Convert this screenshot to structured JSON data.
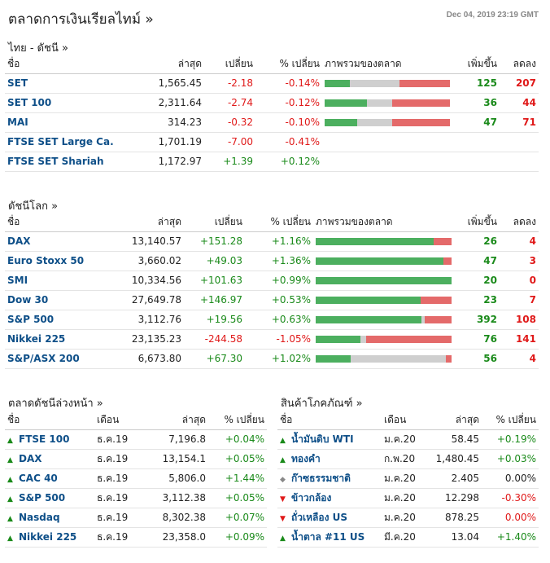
{
  "header": {
    "title": "ตลาดการเงินเรียลไทม์ »",
    "timestamp": "Dec 04, 2019 23:19 GMT"
  },
  "colors": {
    "up": "#1a8a1a",
    "down": "#e01919",
    "link": "#0e4f88",
    "adv_bar": "#4caf5f",
    "unch_bar": "#cfcfcf",
    "dec_bar": "#e46a6a"
  },
  "thai": {
    "title": "ไทย - ดัชนี  »",
    "headers": {
      "name": "ชื่อ",
      "last": "ล่าสุด",
      "chg": "เปลี่ยน",
      "pct": "% เปลี่ยน",
      "breadth": "ภาพรวมของตลาด",
      "adv": "เพิ่มขึ้น",
      "dec": "ลดลง"
    },
    "rows": [
      {
        "name": "SET",
        "last": "1,565.45",
        "chg": "-2.18",
        "pct": "-0.14%",
        "dir": "neg",
        "adv": "125",
        "dec": "207",
        "breadth": [
          0.2,
          0.4,
          0.4
        ]
      },
      {
        "name": "SET 100",
        "last": "2,311.64",
        "chg": "-2.74",
        "pct": "-0.12%",
        "dir": "neg",
        "adv": "36",
        "dec": "44",
        "breadth": [
          0.34,
          0.2,
          0.46
        ]
      },
      {
        "name": "MAI",
        "last": "314.23",
        "chg": "-0.32",
        "pct": "-0.10%",
        "dir": "neg",
        "adv": "47",
        "dec": "71",
        "breadth": [
          0.26,
          0.28,
          0.46
        ]
      },
      {
        "name": "FTSE SET Large Ca.",
        "last": "1,701.19",
        "chg": "-7.00",
        "pct": "-0.41%",
        "dir": "neg",
        "adv": "",
        "dec": "",
        "breadth": null
      },
      {
        "name": "FTSE SET Shariah",
        "last": "1,172.97",
        "chg": "+1.39",
        "pct": "+0.12%",
        "dir": "pos",
        "adv": "",
        "dec": "",
        "breadth": null
      }
    ]
  },
  "world": {
    "title": "ดัชนีโลก »",
    "headers": {
      "name": "ชื่อ",
      "last": "ล่าสุด",
      "chg": "เปลี่ยน",
      "pct": "% เปลี่ยน",
      "breadth": "ภาพรวมของตลาด",
      "adv": "เพิ่มขึ้น",
      "dec": "ลดลง"
    },
    "rows": [
      {
        "name": "DAX",
        "last": "13,140.57",
        "chg": "+151.28",
        "pct": "+1.16%",
        "dir": "pos",
        "adv": "26",
        "dec": "4",
        "breadth": [
          0.87,
          0,
          0.13
        ]
      },
      {
        "name": "Euro Stoxx 50",
        "last": "3,660.02",
        "chg": "+49.03",
        "pct": "+1.36%",
        "dir": "pos",
        "adv": "47",
        "dec": "3",
        "breadth": [
          0.94,
          0,
          0.06
        ]
      },
      {
        "name": "SMI",
        "last": "10,334.56",
        "chg": "+101.63",
        "pct": "+0.99%",
        "dir": "pos",
        "adv": "20",
        "dec": "0",
        "breadth": [
          1,
          0,
          0
        ]
      },
      {
        "name": "Dow 30",
        "last": "27,649.78",
        "chg": "+146.97",
        "pct": "+0.53%",
        "dir": "pos",
        "adv": "23",
        "dec": "7",
        "breadth": [
          0.77,
          0,
          0.23
        ]
      },
      {
        "name": "S&P 500",
        "last": "3,112.76",
        "chg": "+19.56",
        "pct": "+0.63%",
        "dir": "pos",
        "adv": "392",
        "dec": "108",
        "breadth": [
          0.78,
          0.02,
          0.2
        ]
      },
      {
        "name": "Nikkei 225",
        "last": "23,135.23",
        "chg": "-244.58",
        "pct": "-1.05%",
        "dir": "neg",
        "adv": "76",
        "dec": "141",
        "breadth": [
          0.33,
          0.04,
          0.63
        ]
      },
      {
        "name": "S&P/ASX 200",
        "last": "6,673.80",
        "chg": "+67.30",
        "pct": "+1.02%",
        "dir": "pos",
        "adv": "56",
        "dec": "4",
        "breadth": [
          0.26,
          0.7,
          0.04
        ]
      }
    ]
  },
  "futures": {
    "title": "ตลาดดัชนีล่วงหน้า »",
    "headers": {
      "name": "ชื่อ",
      "month": "เดือน",
      "last": "ล่าสุด",
      "pct": "% เปลี่ยน"
    },
    "rows": [
      {
        "name": "FTSE 100",
        "month": "ธ.ค.19",
        "last": "7,196.8",
        "pct": "+0.04%",
        "dir": "up"
      },
      {
        "name": "DAX",
        "month": "ธ.ค.19",
        "last": "13,154.1",
        "pct": "+0.05%",
        "dir": "up"
      },
      {
        "name": "CAC 40",
        "month": "ธ.ค.19",
        "last": "5,806.0",
        "pct": "+1.44%",
        "dir": "up"
      },
      {
        "name": "S&P 500",
        "month": "ธ.ค.19",
        "last": "3,112.38",
        "pct": "+0.05%",
        "dir": "up"
      },
      {
        "name": "Nasdaq",
        "month": "ธ.ค.19",
        "last": "8,302.38",
        "pct": "+0.07%",
        "dir": "up"
      },
      {
        "name": "Nikkei 225",
        "month": "ธ.ค.19",
        "last": "23,358.0",
        "pct": "+0.09%",
        "dir": "up"
      }
    ]
  },
  "commodities": {
    "title": "สินค้าโภคภัณฑ์ »",
    "headers": {
      "name": "ชื่อ",
      "month": "เดือน",
      "last": "ล่าสุด",
      "pct": "% เปลี่ยน"
    },
    "rows": [
      {
        "name": "น้ำมันดิบ WTI",
        "month": "ม.ค.20",
        "last": "58.45",
        "pct": "+0.19%",
        "dir": "up"
      },
      {
        "name": "ทองคำ",
        "month": "ก.พ.20",
        "last": "1,480.45",
        "pct": "+0.03%",
        "dir": "up"
      },
      {
        "name": "ก๊าซธรรมชาติ",
        "month": "ม.ค.20",
        "last": "2.405",
        "pct": "0.00%",
        "dir": "neu"
      },
      {
        "name": "ข้าวกล้อง",
        "month": "ม.ค.20",
        "last": "12.298",
        "pct": "-0.30%",
        "dir": "down"
      },
      {
        "name": "ถั่วเหลือง US",
        "month": "ม.ค.20",
        "last": "878.25",
        "pct": "0.00%",
        "dir": "down"
      },
      {
        "name": "น้ำตาล #11 US",
        "month": "มี.ค.20",
        "last": "13.04",
        "pct": "+1.40%",
        "dir": "up"
      }
    ]
  }
}
